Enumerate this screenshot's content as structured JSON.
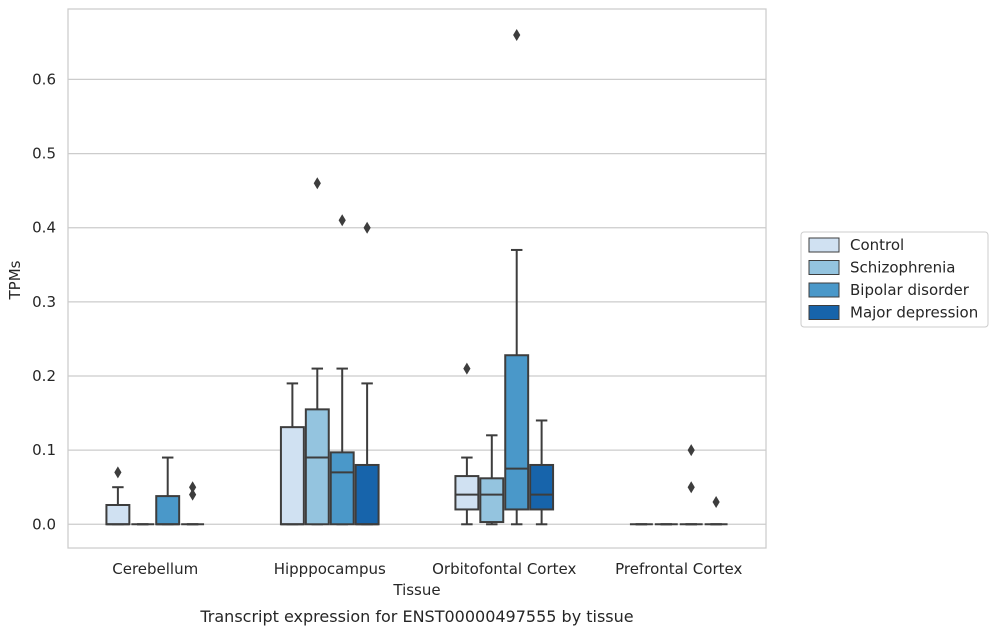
{
  "chart_data": {
    "type": "boxplot",
    "caption": "Transcript expression for ENST00000497555 by tissue",
    "xlabel": "Tissue",
    "ylabel": "TPMs",
    "ylim": [
      -0.032,
      0.695
    ],
    "yticks": [
      0.0,
      0.1,
      0.2,
      0.3,
      0.4,
      0.5,
      0.6
    ],
    "ytick_labels": [
      "0.0",
      "0.1",
      "0.2",
      "0.3",
      "0.4",
      "0.5",
      "0.6"
    ],
    "grid": "horizontal",
    "legend_position": "right",
    "categories": [
      "Cerebellum",
      "Hipppocampus",
      "Orbitofontal Cortex",
      "Prefrontal Cortex"
    ],
    "series": [
      {
        "name": "Control",
        "color": "#d0e1f2",
        "boxes": [
          {
            "q1": 0.0,
            "median": 0.0,
            "q3": 0.026,
            "whislo": 0.0,
            "whishi": 0.05,
            "fliers": [
              0.07
            ]
          },
          {
            "q1": 0.0,
            "median": 0.0,
            "q3": 0.131,
            "whislo": 0.0,
            "whishi": 0.19,
            "fliers": []
          },
          {
            "q1": 0.02,
            "median": 0.04,
            "q3": 0.065,
            "whislo": 0.0,
            "whishi": 0.09,
            "fliers": [
              0.21
            ]
          },
          {
            "q1": 0.0,
            "median": 0.0,
            "q3": 0.0,
            "whislo": 0.0,
            "whishi": 0.0,
            "fliers": []
          }
        ]
      },
      {
        "name": "Schizophrenia",
        "color": "#94c4df",
        "boxes": [
          {
            "q1": 0.0,
            "median": 0.0,
            "q3": 0.0,
            "whislo": 0.0,
            "whishi": 0.0,
            "fliers": []
          },
          {
            "q1": 0.0,
            "median": 0.09,
            "q3": 0.155,
            "whislo": 0.0,
            "whishi": 0.21,
            "fliers": [
              0.46
            ]
          },
          {
            "q1": 0.003,
            "median": 0.04,
            "q3": 0.062,
            "whislo": 0.0,
            "whishi": 0.12,
            "fliers": []
          },
          {
            "q1": 0.0,
            "median": 0.0,
            "q3": 0.0,
            "whislo": 0.0,
            "whishi": 0.0,
            "fliers": []
          }
        ]
      },
      {
        "name": "Bipolar disorder",
        "color": "#4a98c9",
        "boxes": [
          {
            "q1": 0.0,
            "median": 0.0,
            "q3": 0.038,
            "whislo": 0.0,
            "whishi": 0.09,
            "fliers": []
          },
          {
            "q1": 0.0,
            "median": 0.07,
            "q3": 0.097,
            "whislo": 0.0,
            "whishi": 0.21,
            "fliers": [
              0.41
            ]
          },
          {
            "q1": 0.02,
            "median": 0.075,
            "q3": 0.228,
            "whislo": 0.0,
            "whishi": 0.37,
            "fliers": [
              0.66
            ]
          },
          {
            "q1": 0.0,
            "median": 0.0,
            "q3": 0.0,
            "whislo": 0.0,
            "whishi": 0.0,
            "fliers": [
              0.05,
              0.1
            ]
          }
        ]
      },
      {
        "name": "Major depression",
        "color": "#1764ab",
        "boxes": [
          {
            "q1": 0.0,
            "median": 0.0,
            "q3": 0.0,
            "whislo": 0.0,
            "whishi": 0.0,
            "fliers": [
              0.04,
              0.05
            ]
          },
          {
            "q1": 0.0,
            "median": 0.0,
            "q3": 0.08,
            "whislo": 0.0,
            "whishi": 0.19,
            "fliers": [
              0.4
            ]
          },
          {
            "q1": 0.02,
            "median": 0.04,
            "q3": 0.08,
            "whislo": 0.0,
            "whishi": 0.14,
            "fliers": []
          },
          {
            "q1": 0.0,
            "median": 0.0,
            "q3": 0.0,
            "whislo": 0.0,
            "whishi": 0.0,
            "fliers": [
              0.03
            ]
          }
        ]
      }
    ]
  }
}
